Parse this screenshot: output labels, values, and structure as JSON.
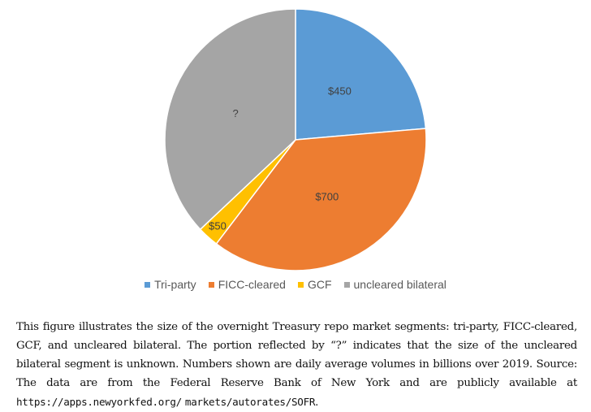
{
  "chart_data": {
    "type": "pie",
    "title": "",
    "start_angle": "top, clockwise",
    "slices": [
      {
        "name": "Tri-party",
        "value": 450,
        "label": "$450",
        "color": "#5B9BD5"
      },
      {
        "name": "FICC-cleared",
        "value": 700,
        "label": "$700",
        "color": "#ED7D31"
      },
      {
        "name": "GCF",
        "value": 50,
        "label": "$50",
        "color": "#FFC000"
      },
      {
        "name": "uncleared bilateral",
        "value": 705,
        "label": "?",
        "color": "#A5A5A5"
      }
    ],
    "legend_position": "bottom"
  },
  "caption": {
    "text": "This figure illustrates the size of the overnight Treasury repo market segments: tri-party, FICC-cleared, GCF, and uncleared bilateral. The portion reflected by “?” indicates that the size of the uncleared bilateral segment is unknown. Numbers shown are daily average volumes in billions over 2019. Source: The data are from the Federal Reserve Bank of New York and are publicly available at ",
    "url_line1": "https://apps.newyorkfed.org/",
    "url_line2": "markets/autorates/SOFR",
    "tail": "."
  }
}
